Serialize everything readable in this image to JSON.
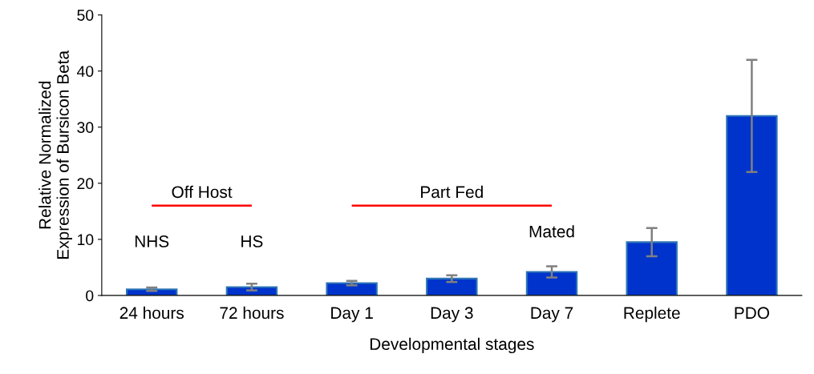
{
  "chart_data": {
    "type": "bar",
    "xlabel": "Developmental stages",
    "ylabel": "Relative Normalized\nExpression of Bursicon Beta",
    "categories": [
      "24 hours",
      "72 hours",
      "Day 1",
      "Day 3",
      "Day 7",
      "Replete",
      "PDO"
    ],
    "series": [
      {
        "color": "#0033cc",
        "values": [
          1.1,
          1.5,
          2.2,
          3.0,
          4.2,
          9.5,
          32
        ],
        "errors": [
          0.3,
          0.6,
          0.4,
          0.6,
          1.0,
          2.5,
          10
        ]
      },
      {
        "type": "line",
        "color": "#ff0000",
        "values": [
          16,
          16,
          null,
          null,
          null,
          null,
          null
        ]
      },
      {
        "type": "line",
        "color": "#ff0000",
        "values": [
          null,
          null,
          16,
          16,
          16,
          null,
          null
        ]
      }
    ],
    "annotations": [
      "Off Host",
      "Part Fed",
      "NHS",
      "HS",
      "Mated"
    ],
    "ylim": [
      0,
      50
    ],
    "yticks": [
      0,
      10,
      20,
      30,
      40,
      50
    ],
    "grid": false,
    "legend": false
  }
}
